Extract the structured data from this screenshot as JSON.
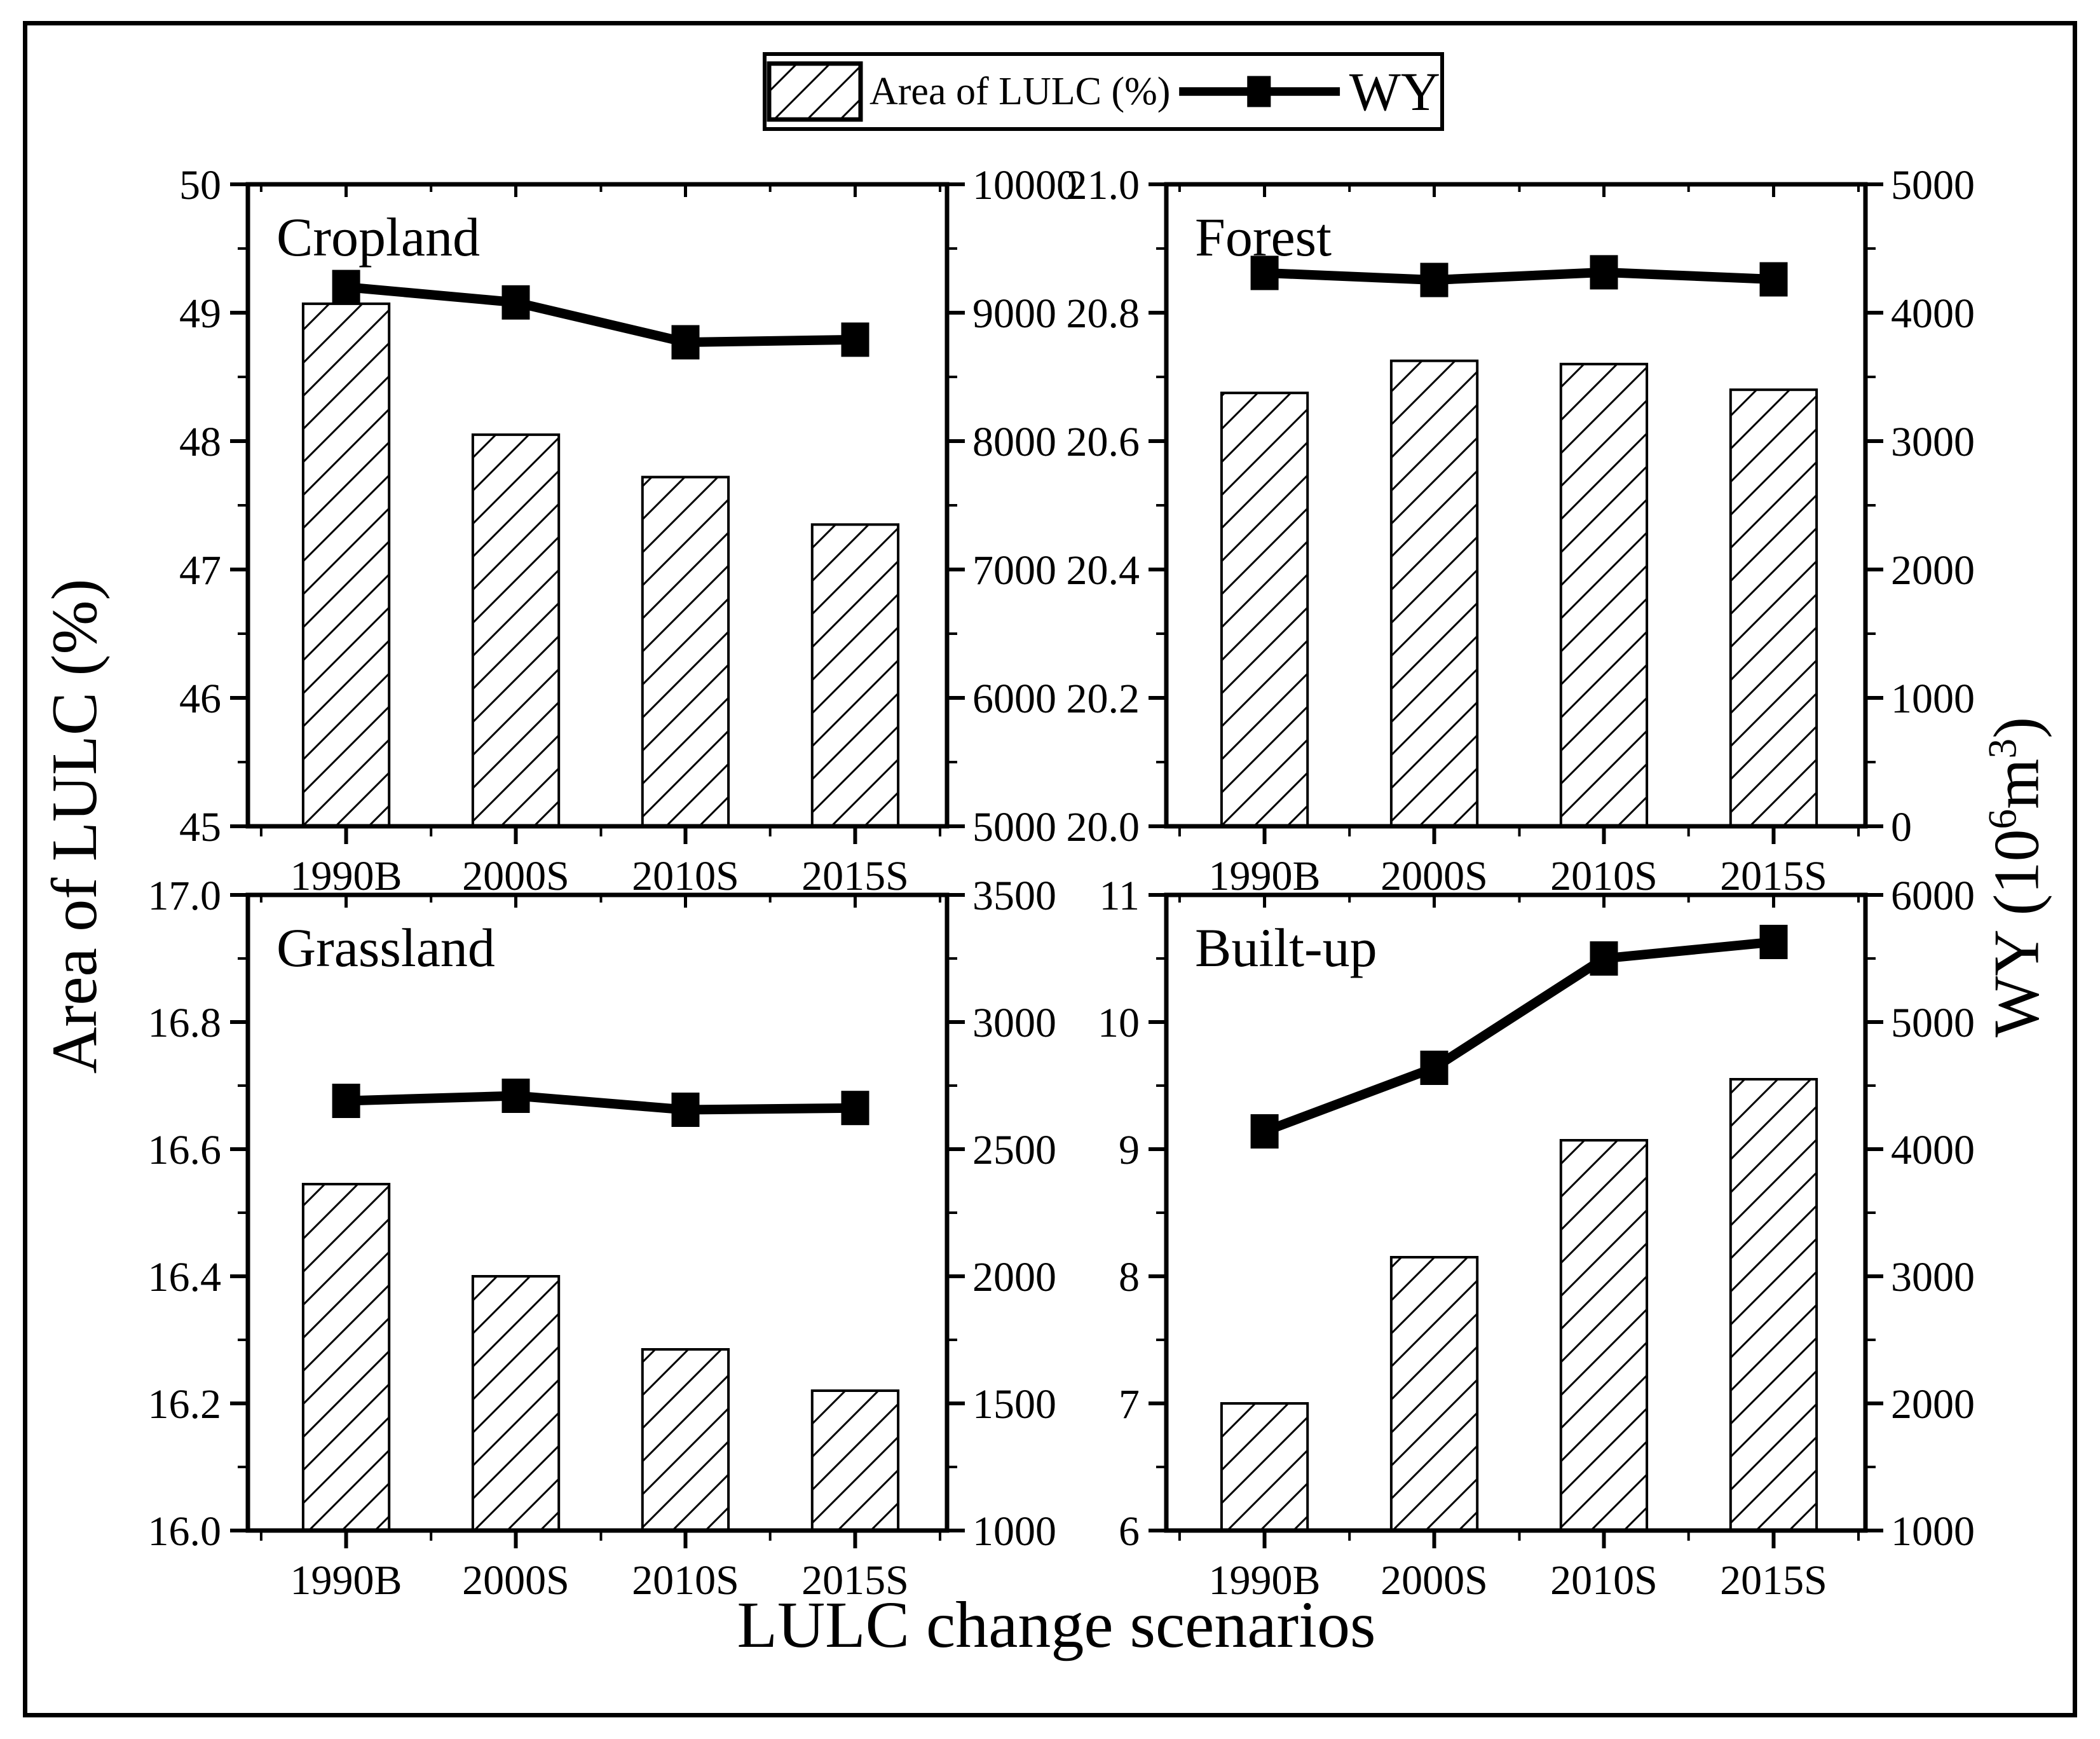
{
  "legend": {
    "area_label": "Area of LULC (%)",
    "wy_label": "WY"
  },
  "axes_titles": {
    "left": "Area of LULC (%)",
    "bottom": "LULC change scenarios",
    "right_pre": "WY (10",
    "right_sup1": "6",
    "right_mid": "m",
    "right_sup2": "3",
    "right_post": ")"
  },
  "chart_data": [
    {
      "type": "bar",
      "title": "Cropland",
      "categories": [
        "1990B",
        "2000S",
        "2010S",
        "2015S"
      ],
      "series": [
        {
          "name": "Area of LULC (%)",
          "type": "bar",
          "axis": "left",
          "values": [
            49.07,
            48.05,
            47.72,
            47.35
          ]
        },
        {
          "name": "WY",
          "type": "line",
          "axis": "right",
          "values": [
            9200,
            9080,
            8770,
            8790
          ]
        }
      ],
      "left_axis": {
        "min": 45,
        "max": 50,
        "ticks": [
          45,
          46,
          47,
          48,
          49,
          50
        ],
        "labels": [
          "45",
          "46",
          "47",
          "48",
          "49",
          "50"
        ]
      },
      "right_axis": {
        "min": 5000,
        "max": 10000,
        "ticks": [
          5000,
          6000,
          7000,
          8000,
          9000,
          10000
        ],
        "labels": [
          "5000",
          "6000",
          "7000",
          "8000",
          "9000",
          "10000"
        ]
      },
      "grid": false
    },
    {
      "type": "bar",
      "title": "Forest",
      "categories": [
        "1990B",
        "2000S",
        "2010S",
        "2015S"
      ],
      "series": [
        {
          "name": "Area of LULC (%)",
          "type": "bar",
          "axis": "left",
          "values": [
            20.675,
            20.725,
            20.72,
            20.68
          ]
        },
        {
          "name": "WY",
          "type": "line",
          "axis": "right",
          "values": [
            4310,
            4255,
            4315,
            4260
          ]
        }
      ],
      "left_axis": {
        "min": 20.0,
        "max": 21.0,
        "ticks": [
          20.0,
          20.2,
          20.4,
          20.6,
          20.8,
          21.0
        ],
        "labels": [
          "20.0",
          "20.2",
          "20.4",
          "20.6",
          "20.8",
          "21.0"
        ]
      },
      "right_axis": {
        "min": 0,
        "max": 5000,
        "ticks": [
          0,
          1000,
          2000,
          3000,
          4000,
          5000
        ],
        "labels": [
          "0",
          "1000",
          "2000",
          "3000",
          "4000",
          "5000"
        ]
      },
      "grid": false
    },
    {
      "type": "bar",
      "title": "Grassland",
      "categories": [
        "1990B",
        "2000S",
        "2010S",
        "2015S"
      ],
      "series": [
        {
          "name": "Area of LULC (%)",
          "type": "bar",
          "axis": "left",
          "values": [
            16.545,
            16.4,
            16.285,
            16.22
          ]
        },
        {
          "name": "WY",
          "type": "line",
          "axis": "right",
          "values": [
            2690,
            2710,
            2655,
            2662
          ]
        }
      ],
      "left_axis": {
        "min": 16.0,
        "max": 17.0,
        "ticks": [
          16.0,
          16.2,
          16.4,
          16.6,
          16.8,
          17.0
        ],
        "labels": [
          "16.0",
          "16.2",
          "16.4",
          "16.6",
          "16.8",
          "17.0"
        ]
      },
      "right_axis": {
        "min": 1000,
        "max": 3500,
        "ticks": [
          1000,
          1500,
          2000,
          2500,
          3000,
          3500
        ],
        "labels": [
          "1000",
          "1500",
          "2000",
          "2500",
          "3000",
          "3500"
        ]
      },
      "grid": false
    },
    {
      "type": "bar",
      "title": "Built-up",
      "categories": [
        "1990B",
        "2000S",
        "2010S",
        "2015S"
      ],
      "series": [
        {
          "name": "Area of LULC (%)",
          "type": "bar",
          "axis": "left",
          "values": [
            7.0,
            8.15,
            9.07,
            9.55
          ]
        },
        {
          "name": "WY",
          "type": "line",
          "axis": "right",
          "values": [
            4140,
            4640,
            5500,
            5630
          ]
        }
      ],
      "left_axis": {
        "min": 6,
        "max": 11,
        "ticks": [
          6,
          7,
          8,
          9,
          10,
          11
        ],
        "labels": [
          "6",
          "7",
          "8",
          "9",
          "10",
          "11"
        ]
      },
      "right_axis": {
        "min": 1000,
        "max": 6000,
        "ticks": [
          1000,
          2000,
          3000,
          4000,
          5000,
          6000
        ],
        "labels": [
          "1000",
          "2000",
          "3000",
          "4000",
          "5000",
          "6000"
        ]
      },
      "grid": false
    }
  ]
}
